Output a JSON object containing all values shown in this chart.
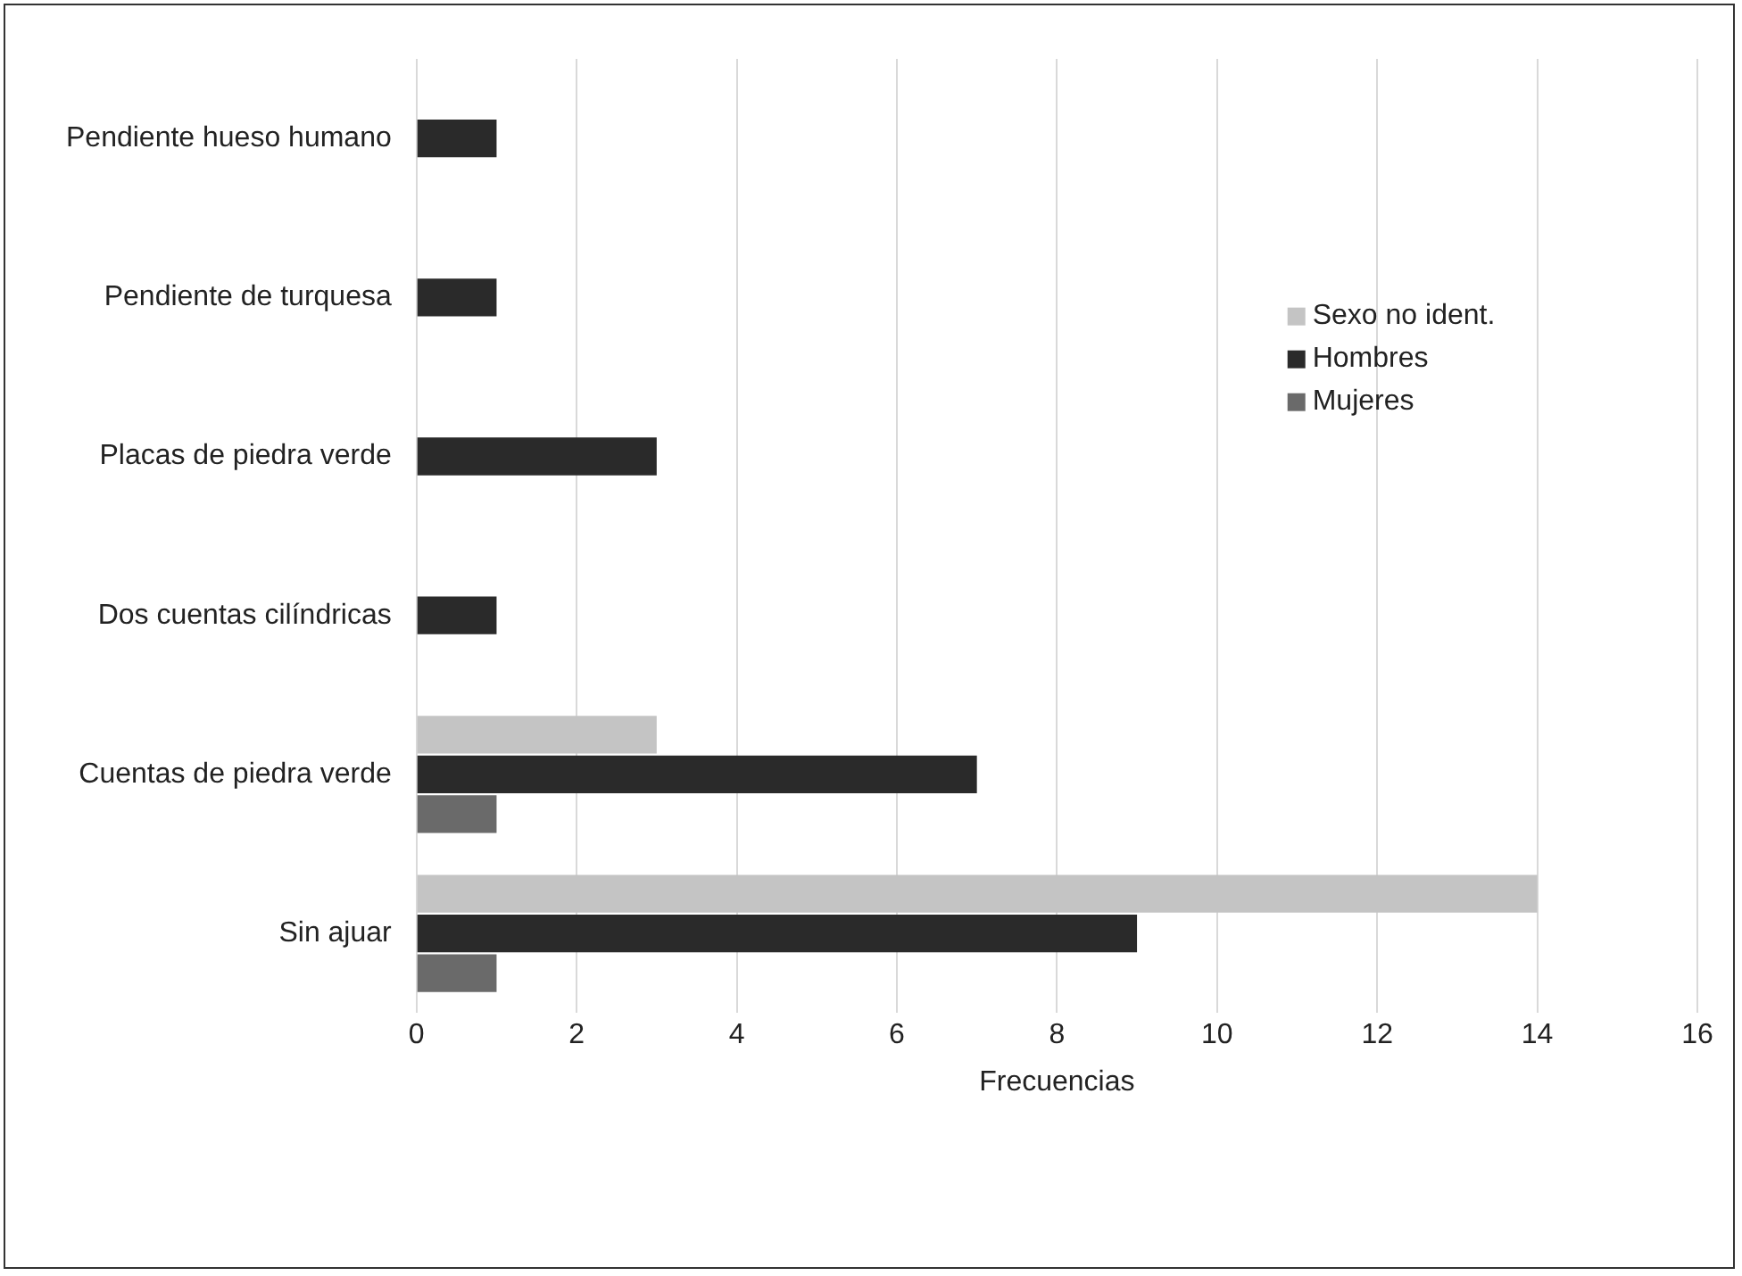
{
  "chart_data": {
    "type": "bar",
    "orientation": "horizontal",
    "xlabel": "Frecuencias",
    "categories": [
      "Pendiente hueso humano",
      "Pendiente de turquesa",
      "Placas de piedra verde",
      "Dos cuentas cilíndricas",
      "Cuentas de piedra verde",
      "Sin ajuar"
    ],
    "series": [
      {
        "name": "Sexo no ident.",
        "color": "#c4c4c4",
        "values": [
          null,
          null,
          null,
          null,
          3,
          14
        ]
      },
      {
        "name": "Hombres",
        "color": "#2a2a2a",
        "values": [
          1,
          1,
          3,
          1,
          7,
          9
        ]
      },
      {
        "name": "Mujeres",
        "color": "#6a6a6a",
        "values": [
          null,
          null,
          null,
          null,
          1,
          1
        ]
      }
    ],
    "xlim": [
      0,
      16
    ],
    "xticks": [
      0,
      2,
      4,
      6,
      8,
      10,
      12,
      14,
      16
    ],
    "grid": "x",
    "legend": "top right"
  }
}
